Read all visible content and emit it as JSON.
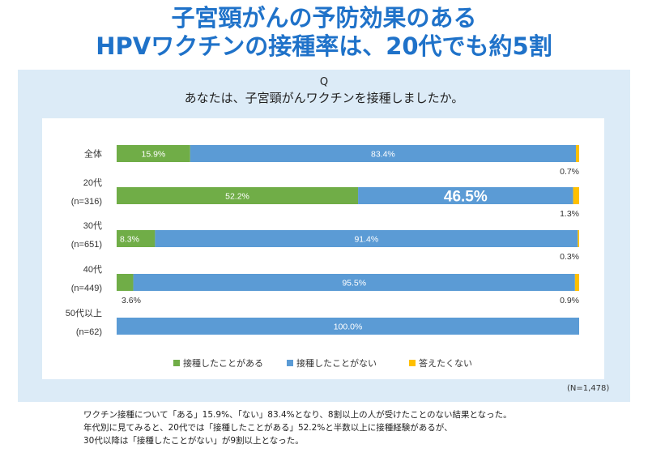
{
  "title": {
    "line1": "子宮頸がんの予防効果のある",
    "line2": "HPVワクチンの接種率は、20代でも約5割"
  },
  "question": {
    "mark": "Q",
    "text": "あなたは、子宮頸がんワクチンを接種しましたか。"
  },
  "sample_note": "(N=1,478)",
  "summary": [
    "ワクチン接種について「ある」15.9%、「ない」83.4%となり、8割以上の人が受けたことのない結果となった。",
    "年代別に見てみると、20代では「接種したことがある」52.2%と半数以上に接種経験があるが、",
    "30代以降は「接種したことがない」が9割以上となった。"
  ],
  "colors": {
    "title": "#1f72c9",
    "panel": "#dcebf7",
    "vaccinated": "#70ad47",
    "not_vaccinated": "#5b9bd5",
    "no_answer": "#ffc000"
  },
  "chart_data": {
    "type": "bar",
    "orientation": "horizontal",
    "stacked": true,
    "unit": "%",
    "xlim": [
      0,
      100
    ],
    "grid": false,
    "legend_position": "bottom",
    "categories": [
      [
        "全体"
      ],
      [
        "20代",
        "(n=316)"
      ],
      [
        "30代",
        "(n=651)"
      ],
      [
        "40代",
        "(n=449)"
      ],
      [
        "50代以上",
        "(n=62)"
      ]
    ],
    "series": [
      {
        "name": "接種したことがある",
        "color": "#70ad47",
        "values": [
          15.9,
          52.2,
          8.3,
          3.6,
          0
        ]
      },
      {
        "name": "接種したことがない",
        "color": "#5b9bd5",
        "values": [
          83.4,
          46.5,
          91.4,
          95.5,
          100.0
        ]
      },
      {
        "name": "答えたくない",
        "color": "#ffc000",
        "values": [
          0.7,
          1.3,
          0.3,
          0.9,
          0
        ]
      }
    ],
    "highlight": {
      "series": 1,
      "category": 1
    }
  }
}
